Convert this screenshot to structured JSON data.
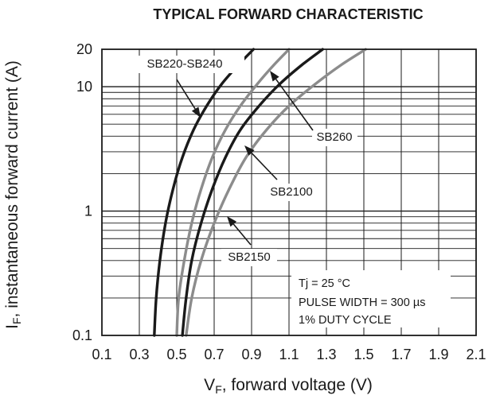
{
  "chart_data": {
    "type": "line",
    "title": "TYPICAL FORWARD CHARACTERISTIC",
    "xlabel_main": "V",
    "xlabel_sub": "F",
    "xlabel_rest": ", forward voltage (V)",
    "ylabel_main": "I",
    "ylabel_sub": "F",
    "ylabel_rest": ", instantaneous forward current (A)",
    "xlim": [
      0.1,
      2.1
    ],
    "ylim": [
      0.1,
      20
    ],
    "yscale": "log",
    "grid": true,
    "x_ticks": [
      0.1,
      0.3,
      0.5,
      0.7,
      0.9,
      1.1,
      1.3,
      1.5,
      1.7,
      1.9,
      2.1
    ],
    "x_tick_labels": [
      "0.1",
      "0.3",
      "0.5",
      "0.7",
      "0.9",
      "1.1",
      "1.3",
      "1.5",
      "1.7",
      "1.9",
      "2.1"
    ],
    "y_ticks": [
      0.1,
      1,
      10,
      20
    ],
    "y_tick_labels": [
      "0.1",
      "1",
      "10",
      "20"
    ],
    "series": [
      {
        "name": "SB220-SB240",
        "color": "#1a1a1a",
        "x": [
          0.38,
          0.39,
          0.41,
          0.44,
          0.48,
          0.53,
          0.59,
          0.66,
          0.74,
          0.83,
          0.91
        ],
        "y": [
          0.1,
          0.2,
          0.4,
          0.8,
          1.5,
          2.7,
          4.5,
          7.0,
          10.5,
          15.0,
          20.0
        ]
      },
      {
        "name": "SB260",
        "color": "#8c8c8c",
        "x": [
          0.5,
          0.51,
          0.54,
          0.58,
          0.63,
          0.69,
          0.76,
          0.84,
          0.93,
          1.02,
          1.1
        ],
        "y": [
          0.1,
          0.2,
          0.4,
          0.8,
          1.5,
          2.7,
          4.5,
          7.0,
          10.5,
          15.0,
          20.0
        ]
      },
      {
        "name": "SB2100",
        "color": "#1a1a1a",
        "x": [
          0.53,
          0.55,
          0.58,
          0.63,
          0.69,
          0.76,
          0.84,
          0.94,
          1.05,
          1.17,
          1.28
        ],
        "y": [
          0.1,
          0.2,
          0.4,
          0.8,
          1.5,
          2.7,
          4.5,
          7.0,
          10.5,
          15.0,
          20.0
        ]
      },
      {
        "name": "SB2150",
        "color": "#8c8c8c",
        "x": [
          0.55,
          0.58,
          0.63,
          0.7,
          0.78,
          0.87,
          0.98,
          1.1,
          1.24,
          1.38,
          1.51
        ],
        "y": [
          0.1,
          0.2,
          0.4,
          0.8,
          1.5,
          2.7,
          4.5,
          7.0,
          10.5,
          15.0,
          20.0
        ]
      }
    ],
    "annotations": [
      "Tj = 25 °C",
      "PULSE WIDTH = 300 µs",
      "1% DUTY CYCLE"
    ]
  }
}
